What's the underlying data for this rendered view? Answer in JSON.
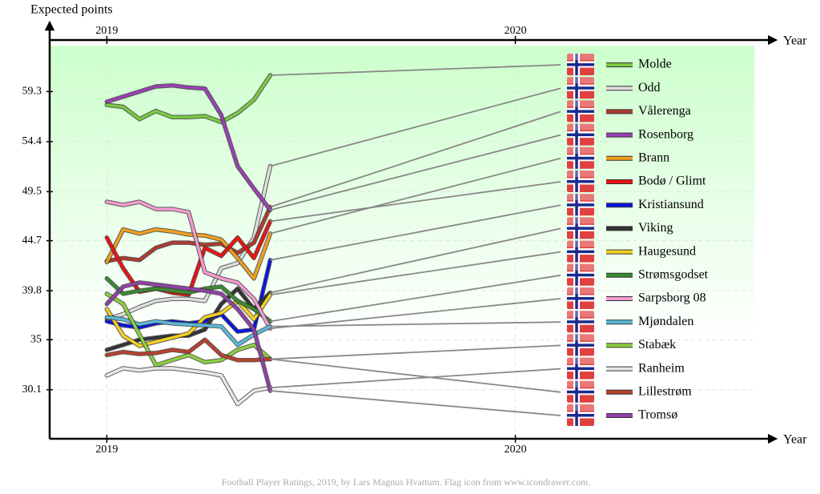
{
  "chart_data": {
    "type": "line",
    "ylabel": "Expected points",
    "xlabel": "Year",
    "footer": "Football Player Ratings, 2019, by Lars Magnus Hvattum. Flag icon from www.icondrawer.com.",
    "xlim": [
      2018.86,
      2020.63
    ],
    "xticks": [
      2019,
      2020
    ],
    "ylim": [
      25.3,
      63.8
    ],
    "yticks": [
      30.1,
      35.0,
      39.8,
      44.7,
      49.5,
      54.4,
      59.3
    ],
    "grid": true,
    "x": [
      2019.0,
      2019.04,
      2019.08,
      2019.12,
      2019.16,
      2019.2,
      2019.24,
      2019.28,
      2019.32,
      2019.36,
      2019.4
    ],
    "series": [
      {
        "name": "Molde",
        "color": "#7ac943",
        "values": [
          58.0,
          57.8,
          56.6,
          57.4,
          56.8,
          56.8,
          56.9,
          56.3,
          57.2,
          58.5,
          60.9
        ]
      },
      {
        "name": "Odd",
        "color": "#dddddd",
        "values": [
          37.0,
          37.5,
          38.2,
          38.8,
          39.0,
          39.0,
          38.8,
          42.0,
          42.5,
          45.0,
          52.0
        ]
      },
      {
        "name": "Vålerenga",
        "color": "#b03a2e",
        "values": [
          42.7,
          43.0,
          42.8,
          44.0,
          44.5,
          44.5,
          44.3,
          44.4,
          43.5,
          44.5,
          48.0
        ]
      },
      {
        "name": "Rosenborg",
        "color": "#9b3fb5",
        "values": [
          58.3,
          58.8,
          59.3,
          59.8,
          59.9,
          59.7,
          59.6,
          57.0,
          52.0,
          49.8,
          47.7
        ]
      },
      {
        "name": "Brann",
        "color": "#f0a020",
        "values": [
          42.6,
          45.8,
          45.4,
          45.8,
          45.6,
          45.3,
          45.2,
          44.8,
          43.0,
          41.0,
          45.4
        ]
      },
      {
        "name": "Bodø / Glimt",
        "color": "#ee1111",
        "values": [
          45.0,
          42.0,
          39.7,
          40.0,
          39.6,
          39.4,
          44.0,
          43.2,
          45.0,
          43.0,
          46.6
        ]
      },
      {
        "name": "Kristiansund",
        "color": "#0a14e0",
        "values": [
          36.8,
          36.4,
          36.2,
          36.6,
          36.8,
          36.6,
          36.8,
          37.5,
          35.8,
          36.0,
          42.8
        ]
      },
      {
        "name": "Viking",
        "color": "#333333",
        "values": [
          34.0,
          34.5,
          35.0,
          35.2,
          35.4,
          35.4,
          36.0,
          38.5,
          40.0,
          38.0,
          39.6
        ]
      },
      {
        "name": "Haugesund",
        "color": "#f5d020",
        "values": [
          38.0,
          35.4,
          34.4,
          34.8,
          35.2,
          35.6,
          37.2,
          37.6,
          38.8,
          37.0,
          39.4
        ]
      },
      {
        "name": "Strømsgodset",
        "color": "#3a8a30",
        "values": [
          41.0,
          39.5,
          39.8,
          40.0,
          39.8,
          39.6,
          40.0,
          40.2,
          38.8,
          38.0,
          36.8
        ]
      },
      {
        "name": "Sarpsborg 08",
        "color": "#f59ad0",
        "values": [
          48.5,
          48.2,
          48.5,
          47.8,
          47.8,
          47.5,
          41.6,
          41.0,
          40.6,
          39.0,
          36.1
        ]
      },
      {
        "name": "Mjøndalen",
        "color": "#5ab8d8",
        "values": [
          37.2,
          37.0,
          36.5,
          36.8,
          36.6,
          36.5,
          36.4,
          36.3,
          34.5,
          35.5,
          36.3
        ]
      },
      {
        "name": "Stabæk",
        "color": "#8cd040",
        "values": [
          39.5,
          38.5,
          35.5,
          32.5,
          33.0,
          33.5,
          32.8,
          33.0,
          34.0,
          34.5,
          33.1
        ]
      },
      {
        "name": "Ranheim",
        "color": "#e8e8e8",
        "values": [
          31.5,
          32.2,
          32.0,
          32.2,
          32.2,
          32.0,
          31.8,
          31.5,
          28.7,
          30.0,
          30.3
        ]
      },
      {
        "name": "Lillestrøm",
        "color": "#b84030",
        "values": [
          33.5,
          33.8,
          33.6,
          33.7,
          34.0,
          33.8,
          35.0,
          33.5,
          33.0,
          33.0,
          33.1
        ]
      },
      {
        "name": "Tromsø",
        "color": "#9040a8",
        "values": [
          38.5,
          40.2,
          40.6,
          40.4,
          40.2,
          40.0,
          39.8,
          39.5,
          38.0,
          36.0,
          30.0
        ]
      }
    ]
  }
}
